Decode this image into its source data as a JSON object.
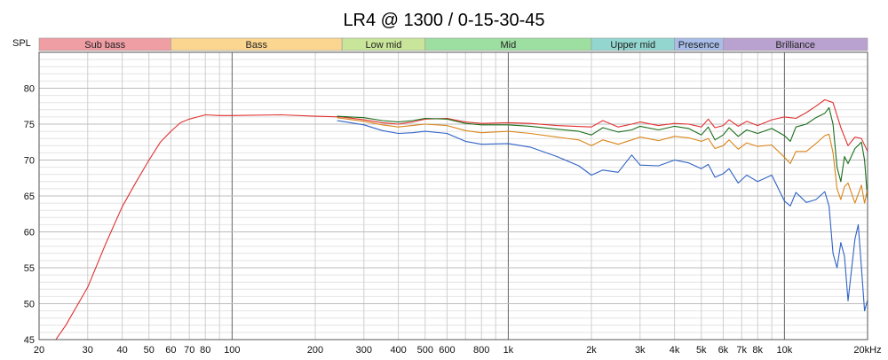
{
  "chart_data": {
    "type": "line",
    "title": "LR4 @ 1300 / 0-15-30-45",
    "ylabel": "SPL",
    "xlabel": "",
    "xscale": "log",
    "xlim": [
      20,
      20000
    ],
    "ylim": [
      45,
      85
    ],
    "grid": true,
    "x_ticks": [
      {
        "value": 20,
        "label": "20"
      },
      {
        "value": 30,
        "label": "30"
      },
      {
        "value": 40,
        "label": "40"
      },
      {
        "value": 50,
        "label": "50"
      },
      {
        "value": 60,
        "label": "60"
      },
      {
        "value": 70,
        "label": "70"
      },
      {
        "value": 80,
        "label": "80"
      },
      {
        "value": 100,
        "label": "100"
      },
      {
        "value": 200,
        "label": "200"
      },
      {
        "value": 300,
        "label": "300"
      },
      {
        "value": 400,
        "label": "400"
      },
      {
        "value": 500,
        "label": "500"
      },
      {
        "value": 600,
        "label": "600"
      },
      {
        "value": 800,
        "label": "800"
      },
      {
        "value": 1000,
        "label": "1k"
      },
      {
        "value": 2000,
        "label": "2k"
      },
      {
        "value": 3000,
        "label": "3k"
      },
      {
        "value": 4000,
        "label": "4k"
      },
      {
        "value": 5000,
        "label": "5k"
      },
      {
        "value": 6000,
        "label": "6k"
      },
      {
        "value": 7000,
        "label": "7k"
      },
      {
        "value": 8000,
        "label": "8k"
      },
      {
        "value": 10000,
        "label": "10k"
      },
      {
        "value": 20000,
        "label": "20kHz"
      }
    ],
    "y_ticks": [
      {
        "value": 45,
        "label": "45"
      },
      {
        "value": 50,
        "label": "50"
      },
      {
        "value": 55,
        "label": "55"
      },
      {
        "value": 60,
        "label": "60"
      },
      {
        "value": 65,
        "label": "65"
      },
      {
        "value": 70,
        "label": "70"
      },
      {
        "value": 75,
        "label": "75"
      },
      {
        "value": 80,
        "label": "80"
      }
    ],
    "bands": [
      {
        "label": "Sub bass",
        "from": 20,
        "to": 60,
        "color": "#ef9ea4"
      },
      {
        "label": "Bass",
        "from": 60,
        "to": 250,
        "color": "#fbd690"
      },
      {
        "label": "Low mid",
        "from": 250,
        "to": 500,
        "color": "#c9e59a"
      },
      {
        "label": "Mid",
        "from": 500,
        "to": 2000,
        "color": "#9ddfa0"
      },
      {
        "label": "Upper mid",
        "from": 2000,
        "to": 4000,
        "color": "#93d6cf"
      },
      {
        "label": "Presence",
        "from": 4000,
        "to": 6000,
        "color": "#a8bde8"
      },
      {
        "label": "Brilliance",
        "from": 6000,
        "to": 20000,
        "color": "#b9a2cf"
      }
    ],
    "series": [
      {
        "color": "#e03030",
        "points": [
          [
            23,
            45
          ],
          [
            25,
            47
          ],
          [
            30,
            52.3
          ],
          [
            35,
            58.5
          ],
          [
            40,
            63.5
          ],
          [
            45,
            67
          ],
          [
            50,
            70
          ],
          [
            55,
            72.5
          ],
          [
            60,
            74
          ],
          [
            65,
            75.2
          ],
          [
            70,
            75.7
          ],
          [
            75,
            76
          ],
          [
            80,
            76.3
          ],
          [
            90,
            76.2
          ],
          [
            100,
            76.2
          ],
          [
            150,
            76.3
          ],
          [
            200,
            76.1
          ],
          [
            250,
            76
          ],
          [
            300,
            75.6
          ],
          [
            350,
            75.2
          ],
          [
            400,
            75
          ],
          [
            450,
            75.3
          ],
          [
            500,
            75.7
          ],
          [
            600,
            75.8
          ],
          [
            700,
            75.3
          ],
          [
            800,
            75.1
          ],
          [
            1000,
            75.2
          ],
          [
            1200,
            75.1
          ],
          [
            1500,
            74.8
          ],
          [
            2000,
            74.6
          ],
          [
            2200,
            75.5
          ],
          [
            2500,
            74.6
          ],
          [
            2800,
            75
          ],
          [
            3000,
            75.3
          ],
          [
            3500,
            74.8
          ],
          [
            4000,
            75.1
          ],
          [
            4500,
            75
          ],
          [
            5000,
            74.6
          ],
          [
            5300,
            75.7
          ],
          [
            5600,
            74.5
          ],
          [
            6000,
            74.8
          ],
          [
            6300,
            75.6
          ],
          [
            6800,
            74.7
          ],
          [
            7300,
            75.4
          ],
          [
            8000,
            74.8
          ],
          [
            9000,
            75.6
          ],
          [
            10000,
            76
          ],
          [
            11000,
            75.8
          ],
          [
            12000,
            76.6
          ],
          [
            13000,
            77.5
          ],
          [
            14000,
            78.4
          ],
          [
            15000,
            78
          ],
          [
            16000,
            74.5
          ],
          [
            17000,
            72
          ],
          [
            18000,
            73.2
          ],
          [
            19000,
            73
          ],
          [
            20000,
            71.2
          ]
        ]
      },
      {
        "color": "#1a6e1a",
        "points": [
          [
            240,
            76.1
          ],
          [
            300,
            75.9
          ],
          [
            350,
            75.5
          ],
          [
            400,
            75.3
          ],
          [
            450,
            75.5
          ],
          [
            500,
            75.8
          ],
          [
            600,
            75.7
          ],
          [
            700,
            75.1
          ],
          [
            800,
            74.9
          ],
          [
            1000,
            74.9
          ],
          [
            1200,
            74.7
          ],
          [
            1500,
            74.3
          ],
          [
            1800,
            74
          ],
          [
            2000,
            73.5
          ],
          [
            2200,
            74.5
          ],
          [
            2500,
            73.9
          ],
          [
            2800,
            74.2
          ],
          [
            3000,
            74.7
          ],
          [
            3500,
            74.2
          ],
          [
            4000,
            74.7
          ],
          [
            4500,
            74.4
          ],
          [
            5000,
            73.5
          ],
          [
            5300,
            74.6
          ],
          [
            5600,
            72.8
          ],
          [
            6000,
            73.5
          ],
          [
            6300,
            74.5
          ],
          [
            6800,
            73.3
          ],
          [
            7300,
            74.2
          ],
          [
            8000,
            73.7
          ],
          [
            9000,
            74.4
          ],
          [
            10000,
            73.4
          ],
          [
            10500,
            72.6
          ],
          [
            11000,
            74.6
          ],
          [
            12000,
            75
          ],
          [
            13000,
            75.9
          ],
          [
            14000,
            76.5
          ],
          [
            14500,
            77.3
          ],
          [
            15000,
            75
          ],
          [
            15500,
            69
          ],
          [
            16000,
            67
          ],
          [
            16500,
            70.5
          ],
          [
            17000,
            69.5
          ],
          [
            18000,
            71.6
          ],
          [
            19000,
            72.5
          ],
          [
            19500,
            70
          ],
          [
            20000,
            64.5
          ]
        ]
      },
      {
        "color": "#d9851a",
        "points": [
          [
            240,
            75.9
          ],
          [
            300,
            75.4
          ],
          [
            350,
            74.9
          ],
          [
            400,
            74.6
          ],
          [
            450,
            74.8
          ],
          [
            500,
            75
          ],
          [
            600,
            74.8
          ],
          [
            700,
            74.1
          ],
          [
            800,
            73.8
          ],
          [
            1000,
            74
          ],
          [
            1200,
            73.7
          ],
          [
            1500,
            73.2
          ],
          [
            1800,
            72.8
          ],
          [
            2000,
            72
          ],
          [
            2200,
            72.8
          ],
          [
            2500,
            72.2
          ],
          [
            2800,
            72.8
          ],
          [
            3000,
            73.2
          ],
          [
            3500,
            72.7
          ],
          [
            4000,
            73.3
          ],
          [
            4500,
            73.1
          ],
          [
            5000,
            72.6
          ],
          [
            5300,
            73
          ],
          [
            5600,
            71.6
          ],
          [
            6000,
            72
          ],
          [
            6300,
            72.8
          ],
          [
            6800,
            71.5
          ],
          [
            7300,
            72.4
          ],
          [
            8000,
            71.9
          ],
          [
            9000,
            72.1
          ],
          [
            10000,
            70.4
          ],
          [
            10500,
            69.5
          ],
          [
            11000,
            71.2
          ],
          [
            12000,
            71.2
          ],
          [
            13000,
            72.3
          ],
          [
            14000,
            73.4
          ],
          [
            14500,
            73.6
          ],
          [
            15000,
            71
          ],
          [
            15500,
            66
          ],
          [
            16000,
            64.5
          ],
          [
            16500,
            66.3
          ],
          [
            17000,
            66.8
          ],
          [
            18000,
            64
          ],
          [
            19000,
            66.5
          ],
          [
            19500,
            64
          ],
          [
            20000,
            66
          ]
        ]
      },
      {
        "color": "#2f62c5",
        "points": [
          [
            240,
            75.5
          ],
          [
            300,
            74.9
          ],
          [
            350,
            74.1
          ],
          [
            400,
            73.7
          ],
          [
            450,
            73.8
          ],
          [
            500,
            74
          ],
          [
            600,
            73.7
          ],
          [
            700,
            72.6
          ],
          [
            800,
            72.2
          ],
          [
            1000,
            72.3
          ],
          [
            1200,
            71.8
          ],
          [
            1500,
            70.5
          ],
          [
            1800,
            69.2
          ],
          [
            2000,
            67.9
          ],
          [
            2200,
            68.6
          ],
          [
            2500,
            68.3
          ],
          [
            2800,
            70.7
          ],
          [
            3000,
            69.3
          ],
          [
            3500,
            69.2
          ],
          [
            4000,
            70
          ],
          [
            4500,
            69.6
          ],
          [
            5000,
            68.8
          ],
          [
            5300,
            69.4
          ],
          [
            5600,
            67.6
          ],
          [
            6000,
            68.1
          ],
          [
            6300,
            68.8
          ],
          [
            6800,
            66.8
          ],
          [
            7300,
            67.9
          ],
          [
            8000,
            67
          ],
          [
            9000,
            67.9
          ],
          [
            10000,
            64.3
          ],
          [
            10500,
            63.6
          ],
          [
            11000,
            65.5
          ],
          [
            12000,
            64.1
          ],
          [
            13000,
            64.5
          ],
          [
            14000,
            65.6
          ],
          [
            14500,
            63.6
          ],
          [
            15000,
            57
          ],
          [
            15500,
            55
          ],
          [
            16000,
            58.5
          ],
          [
            16500,
            56.6
          ],
          [
            17000,
            50.4
          ],
          [
            18000,
            59
          ],
          [
            18500,
            61
          ],
          [
            19000,
            55
          ],
          [
            19500,
            49
          ],
          [
            20000,
            50.5
          ]
        ]
      }
    ]
  }
}
